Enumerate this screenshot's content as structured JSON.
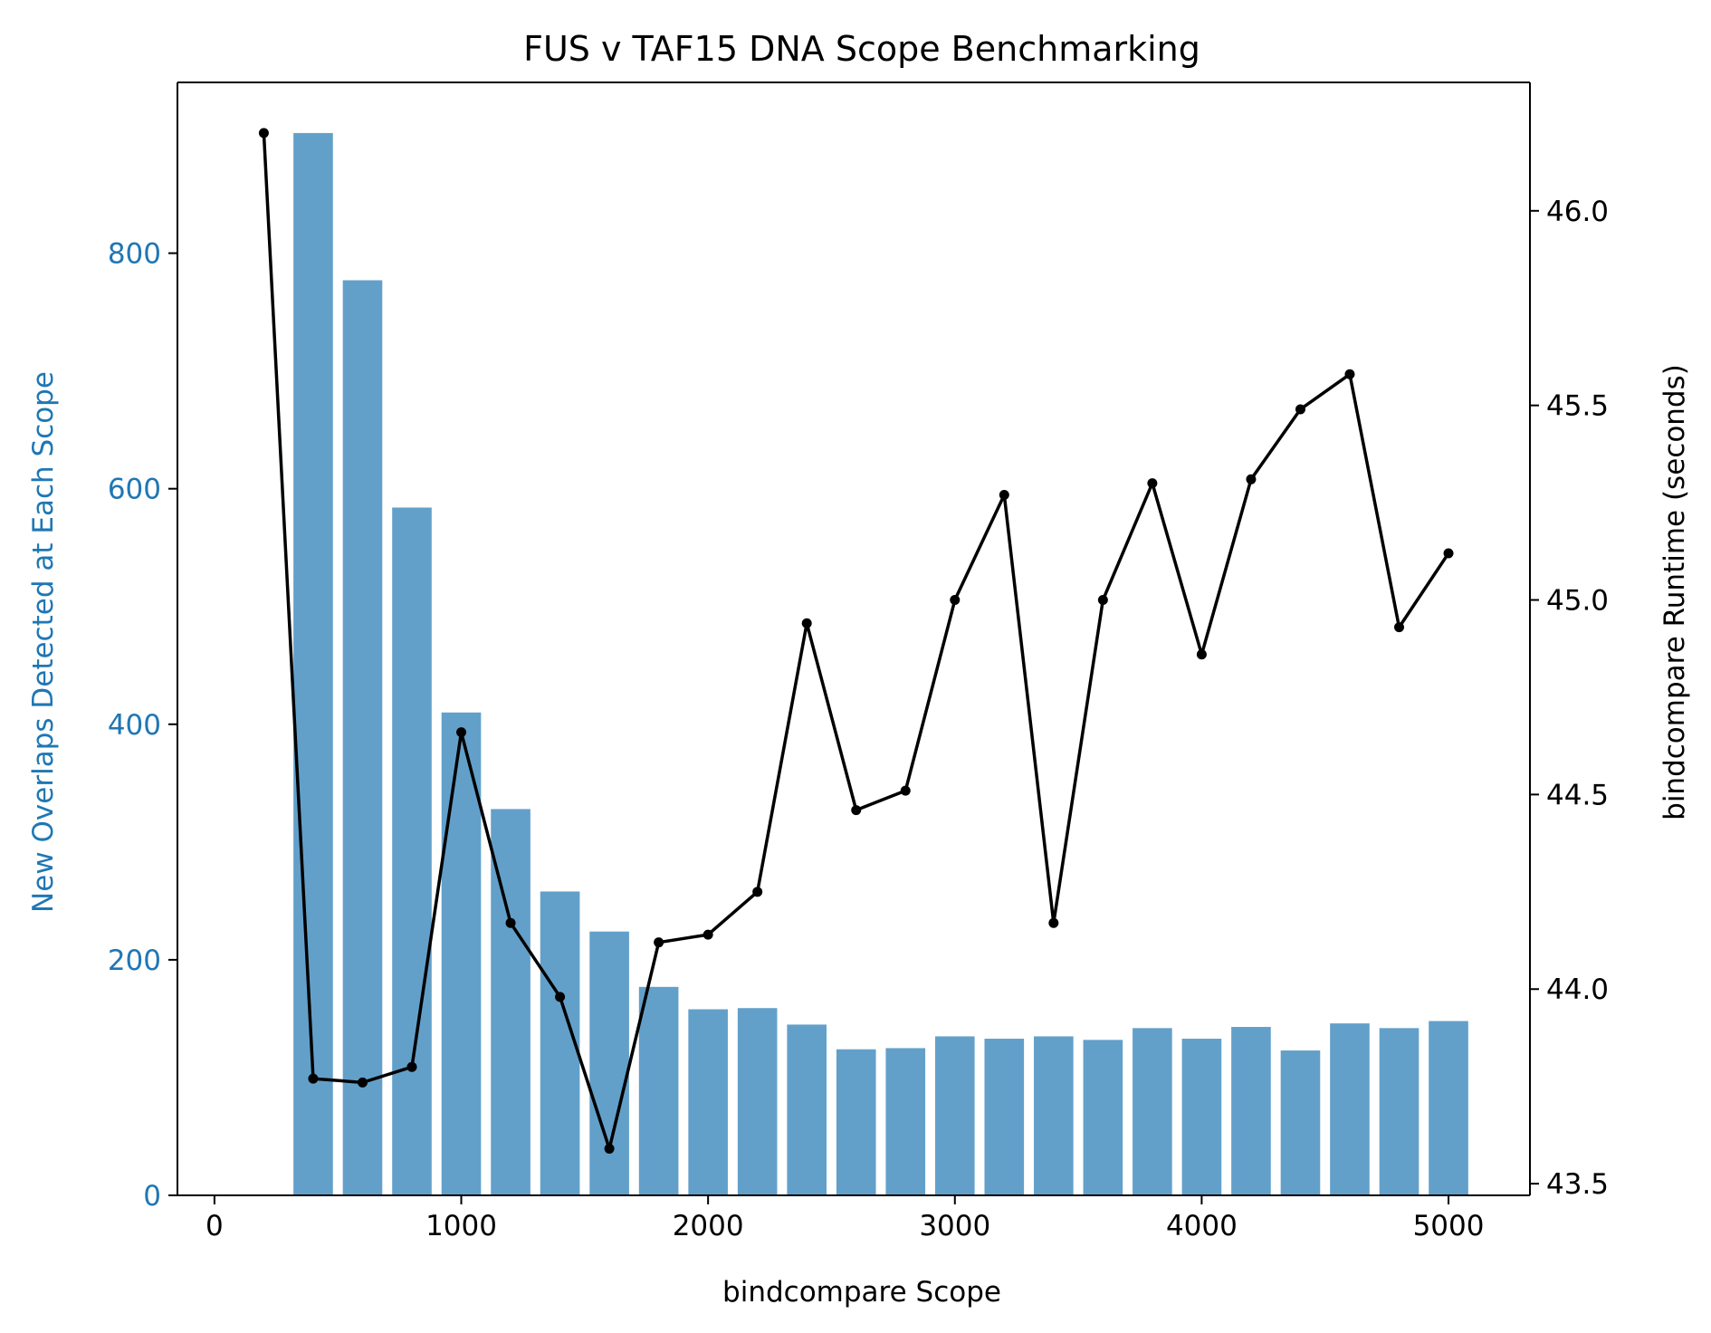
{
  "chart_data": {
    "type": "bar",
    "title": "FUS v TAF15 DNA Scope Benchmarking",
    "xlabel": "bindcompare Scope",
    "ylabel_left": "New Overlaps Detected at Each Scope",
    "ylabel_right": "bindcompare Runtime (seconds)",
    "xlim": [
      -150,
      5330
    ],
    "ylim_left": [
      0,
      945
    ],
    "ylim_right": [
      43.47,
      46.33
    ],
    "x_ticks": [
      0,
      1000,
      2000,
      3000,
      4000,
      5000
    ],
    "x_tick_labels": [
      "0",
      "1000",
      "2000",
      "3000",
      "4000",
      "5000"
    ],
    "y_left_ticks": [
      0,
      200,
      400,
      600,
      800
    ],
    "y_left_tick_labels": [
      "0",
      "200",
      "400",
      "600",
      "800"
    ],
    "y_right_ticks": [
      43.5,
      44.0,
      44.5,
      45.0,
      45.5,
      46.0
    ],
    "y_right_tick_labels": [
      "43.5",
      "44.0",
      "44.5",
      "45.0",
      "45.5",
      "46.0"
    ],
    "grid": false,
    "bar_color": "#1f77b4",
    "bar_opacity": 0.7,
    "line_color": "#000000",
    "left_axis_color": "#1f77b4",
    "series": [
      {
        "kind": "bar",
        "axis": "left",
        "x": [
          400,
          600,
          800,
          1000,
          1200,
          1400,
          1600,
          1800,
          2000,
          2200,
          2400,
          2600,
          2800,
          3000,
          3200,
          3400,
          3600,
          3800,
          4000,
          4200,
          4400,
          4600,
          4800,
          5000
        ],
        "values": [
          902,
          777,
          584,
          410,
          328,
          258,
          224,
          177,
          158,
          159,
          145,
          124,
          125,
          135,
          133,
          135,
          132,
          142,
          133,
          143,
          123,
          146,
          142,
          148
        ]
      },
      {
        "kind": "line",
        "axis": "right",
        "x": [
          200,
          400,
          600,
          800,
          1000,
          1200,
          1400,
          1600,
          1800,
          2000,
          2200,
          2400,
          2600,
          2800,
          3000,
          3200,
          3400,
          3600,
          3800,
          4000,
          4200,
          4400,
          4600,
          4800,
          5000
        ],
        "values": [
          46.2,
          43.77,
          43.76,
          43.8,
          44.66,
          44.17,
          43.98,
          43.59,
          44.12,
          44.14,
          44.25,
          44.94,
          44.46,
          44.51,
          45.0,
          45.27,
          44.17,
          45.0,
          45.3,
          44.86,
          45.31,
          45.49,
          45.58,
          44.93,
          45.12
        ]
      }
    ]
  }
}
